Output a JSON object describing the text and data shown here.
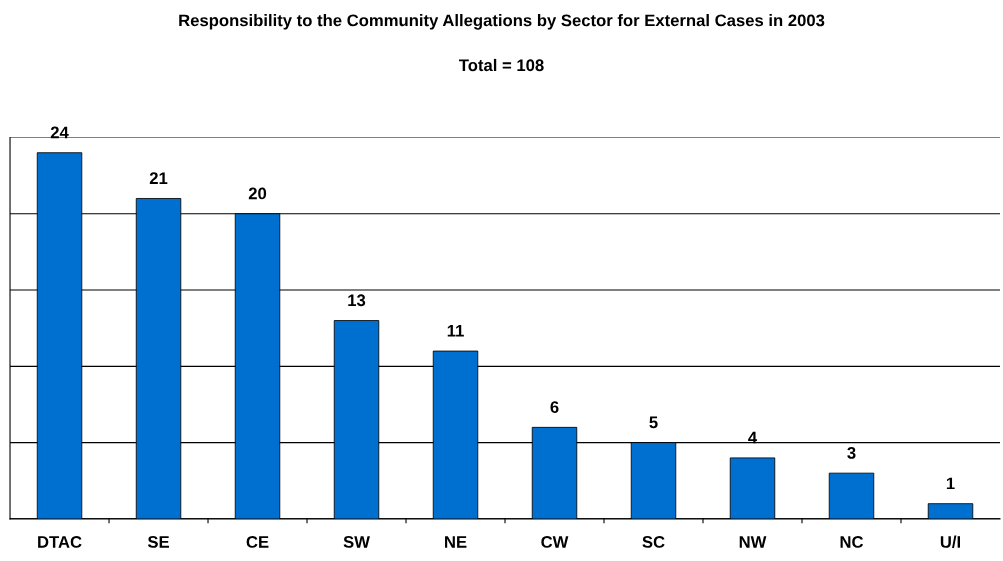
{
  "chart_data": {
    "type": "bar",
    "title": "Responsibility to the Community Allegations by Sector for External Cases in 2003",
    "subtitle": "Total = 108",
    "categories": [
      "DTAC",
      "SE",
      "CE",
      "SW",
      "NE",
      "CW",
      "SC",
      "NW",
      "NC",
      "U/I"
    ],
    "values": [
      24,
      21,
      20,
      13,
      11,
      6,
      5,
      4,
      3,
      1
    ],
    "color": "#0070d0",
    "ylim": [
      0,
      25
    ],
    "yticks": [
      0,
      {
        "value": 5,
        "label": null
      },
      {
        "value": 10,
        "label": null
      },
      {
        "value": 15,
        "label": null
      },
      {
        "value": 20,
        "label": null
      },
      {
        "value": 25,
        "label": null
      }
    ],
    "tick_labels": "x",
    "grid": "y",
    "data_labels": true
  }
}
